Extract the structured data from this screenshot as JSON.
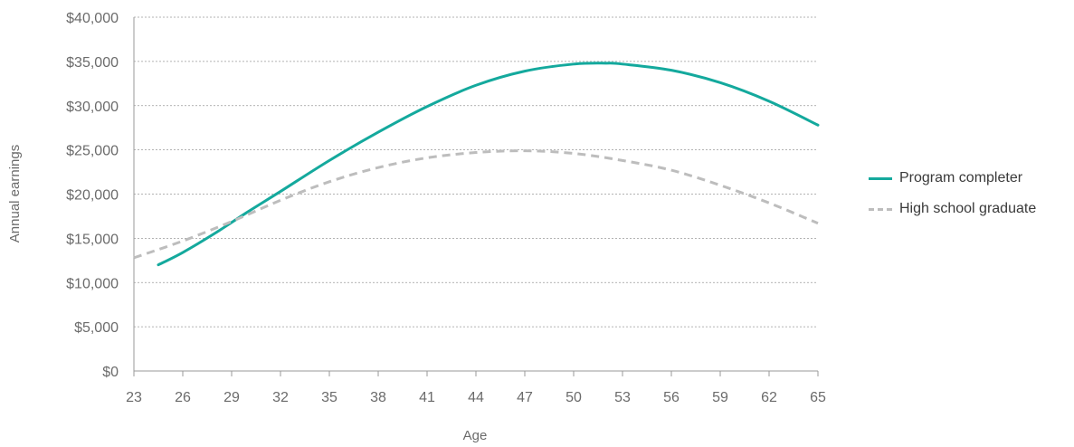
{
  "chart_data": {
    "type": "line",
    "xlabel": "Age",
    "ylabel": "Annual earnings",
    "xlim": [
      23,
      65
    ],
    "ylim": [
      0,
      40000
    ],
    "x_ticks": [
      "23",
      "26",
      "29",
      "32",
      "35",
      "38",
      "41",
      "44",
      "47",
      "50",
      "53",
      "56",
      "59",
      "62",
      "65"
    ],
    "y_ticks": [
      "$0",
      "$5,000",
      "$10,000",
      "$15,000",
      "$20,000",
      "$25,000",
      "$30,000",
      "$35,000",
      "$40,000"
    ],
    "grid": "horizontal dotted",
    "legend_position": "right",
    "series": [
      {
        "name": "Program completer",
        "color": "#14a99d",
        "style": "solid",
        "x": [
          24.5,
          26,
          28,
          30,
          32,
          35,
          38,
          41,
          44,
          47,
          50,
          52,
          53,
          56,
          59,
          62,
          65
        ],
        "y": [
          12000,
          13400,
          15600,
          18000,
          20300,
          23800,
          27000,
          29900,
          32300,
          33900,
          34700,
          34800,
          34700,
          34000,
          32600,
          30500,
          27800
        ]
      },
      {
        "name": "High school graduate",
        "color": "#bdbdbd",
        "style": "dashed",
        "x": [
          23,
          26,
          29,
          32,
          35,
          38,
          41,
          44,
          47,
          50,
          53,
          56,
          59,
          62,
          65
        ],
        "y": [
          12800,
          14700,
          16900,
          19300,
          21400,
          23000,
          24100,
          24700,
          24900,
          24600,
          23800,
          22700,
          21000,
          19000,
          16700
        ]
      }
    ]
  }
}
